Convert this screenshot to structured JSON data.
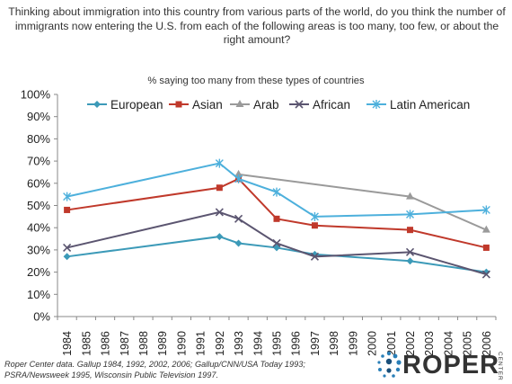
{
  "header": {
    "question": "Thinking about immigration into this country from various parts of the world, do you think the number of immigrants now entering the U.S. from each of the following areas is too many, too few, or about the right amount?"
  },
  "chart_data": {
    "type": "line",
    "title": "% saying too many from these types of countries",
    "xlabel": "",
    "ylabel": "",
    "x": [
      1984,
      1985,
      1986,
      1987,
      1988,
      1989,
      1990,
      1991,
      1992,
      1993,
      1994,
      1995,
      1996,
      1997,
      1998,
      1999,
      2000,
      2001,
      2002,
      2003,
      2004,
      2005,
      2006
    ],
    "ylim": [
      0,
      100
    ],
    "y_ticks": [
      "0%",
      "10%",
      "20%",
      "30%",
      "40%",
      "50%",
      "60%",
      "70%",
      "80%",
      "90%",
      "100%"
    ],
    "legend_position": "top",
    "grid": false,
    "series": [
      {
        "name": "European",
        "color": "#3c9ab8",
        "marker": "diamond",
        "points": [
          [
            1984,
            27
          ],
          [
            1992,
            36
          ],
          [
            1993,
            33
          ],
          [
            1995,
            31
          ],
          [
            1997,
            28
          ],
          [
            2002,
            25
          ],
          [
            2006,
            20
          ]
        ]
      },
      {
        "name": "Asian",
        "color": "#c0392b",
        "marker": "square",
        "points": [
          [
            1984,
            48
          ],
          [
            1992,
            58
          ],
          [
            1993,
            62
          ],
          [
            1995,
            44
          ],
          [
            1997,
            41
          ],
          [
            2002,
            39
          ],
          [
            2006,
            31
          ]
        ]
      },
      {
        "name": "Arab",
        "color": "#9a9a9a",
        "marker": "triangle",
        "points": [
          [
            1993,
            64
          ],
          [
            2002,
            54
          ],
          [
            2006,
            39
          ]
        ]
      },
      {
        "name": "African",
        "color": "#5b5570",
        "marker": "x",
        "points": [
          [
            1984,
            31
          ],
          [
            1992,
            47
          ],
          [
            1993,
            44
          ],
          [
            1995,
            33
          ],
          [
            1997,
            27
          ],
          [
            2002,
            29
          ],
          [
            2006,
            19
          ]
        ]
      },
      {
        "name": "Latin American",
        "color": "#4db0dc",
        "marker": "star",
        "points": [
          [
            1984,
            54
          ],
          [
            1992,
            69
          ],
          [
            1993,
            62
          ],
          [
            1995,
            56
          ],
          [
            1997,
            45
          ],
          [
            2002,
            46
          ],
          [
            2006,
            48
          ]
        ]
      }
    ]
  },
  "footer": {
    "source": "Roper Center data. Gallup 1984,  1992, 2002, 2006; Gallup/CNN/USA Today 1993; PSRA/Newsweek 1995, Wisconsin Public Television 1997.",
    "logo_text": "ROPER",
    "logo_subtext": "CENTER"
  }
}
